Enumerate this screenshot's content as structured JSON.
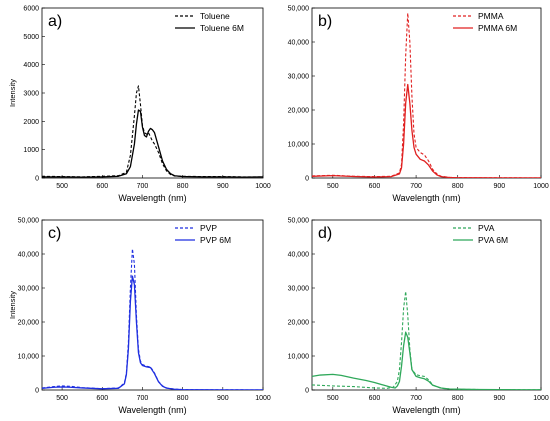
{
  "chart_data": [
    {
      "type": "line",
      "panel_label": "a)",
      "xlabel": "Wavelength (nm)",
      "ylabel": "Intensity",
      "xlim": [
        450,
        1000
      ],
      "ylim": [
        0,
        6000
      ],
      "xticks": [
        500,
        600,
        700,
        800,
        900,
        1000
      ],
      "yticks": [
        0,
        1000,
        2000,
        3000,
        4000,
        5000,
        6000
      ],
      "ytick_labels": [
        "0",
        "1000",
        "2000",
        "3000",
        "4000",
        "5000",
        "6000"
      ],
      "legend_position": "top-right",
      "color": "#000000",
      "series": [
        {
          "name": "Toluene",
          "style": "dashed",
          "x": [
            450,
            500,
            550,
            600,
            640,
            660,
            670,
            680,
            685,
            690,
            695,
            700,
            705,
            710,
            715,
            720,
            725,
            730,
            740,
            750,
            760,
            770,
            780,
            800,
            850,
            900,
            950,
            1000
          ],
          "y": [
            60,
            50,
            40,
            60,
            80,
            200,
            800,
            2200,
            3000,
            3250,
            2600,
            1850,
            1600,
            1550,
            1600,
            1450,
            1300,
            1200,
            900,
            500,
            250,
            120,
            70,
            60,
            50,
            50,
            40,
            40
          ]
        },
        {
          "name": "Toluene 6M",
          "style": "solid",
          "x": [
            450,
            500,
            550,
            600,
            640,
            660,
            670,
            680,
            685,
            690,
            695,
            700,
            705,
            710,
            715,
            720,
            725,
            730,
            740,
            750,
            760,
            770,
            780,
            800,
            850,
            900,
            950,
            1000
          ],
          "y": [
            40,
            40,
            30,
            40,
            60,
            150,
            400,
            1200,
            1900,
            2400,
            2350,
            1800,
            1500,
            1450,
            1650,
            1750,
            1700,
            1600,
            1100,
            600,
            300,
            150,
            80,
            50,
            40,
            40,
            30,
            40
          ]
        }
      ]
    },
    {
      "type": "line",
      "panel_label": "b)",
      "xlabel": "Wavelength (nm)",
      "ylabel": "",
      "xlim": [
        450,
        1000
      ],
      "ylim": [
        0,
        50000
      ],
      "xticks": [
        500,
        600,
        700,
        800,
        900,
        1000
      ],
      "yticks": [
        0,
        10000,
        20000,
        30000,
        40000,
        50000
      ],
      "ytick_labels": [
        "0",
        "10,000",
        "20,000",
        "30,000",
        "40,000",
        "50,000"
      ],
      "legend_position": "top-right",
      "color": "#e02020",
      "series": [
        {
          "name": "PMMA",
          "style": "dashed",
          "x": [
            450,
            500,
            550,
            600,
            640,
            660,
            665,
            670,
            675,
            680,
            685,
            690,
            695,
            700,
            710,
            720,
            730,
            740,
            750,
            760,
            780,
            800,
            850,
            900,
            950,
            1000
          ],
          "y": [
            600,
            800,
            500,
            400,
            500,
            1500,
            4000,
            16000,
            36000,
            48500,
            40000,
            24000,
            13000,
            9000,
            7500,
            6800,
            5000,
            2500,
            1200,
            500,
            200,
            100,
            50,
            50,
            40,
            30
          ]
        },
        {
          "name": "PMMA 6M",
          "style": "solid",
          "x": [
            450,
            500,
            550,
            600,
            640,
            660,
            665,
            670,
            675,
            680,
            685,
            690,
            695,
            700,
            710,
            720,
            730,
            740,
            750,
            760,
            780,
            800,
            850,
            900,
            950,
            1000
          ],
          "y": [
            500,
            700,
            450,
            300,
            400,
            1200,
            3000,
            10000,
            22000,
            27500,
            22000,
            14000,
            9000,
            7000,
            5500,
            5000,
            3800,
            2000,
            900,
            400,
            150,
            80,
            50,
            40,
            30,
            30
          ]
        }
      ]
    },
    {
      "type": "line",
      "panel_label": "c)",
      "xlabel": "Wavelength (nm)",
      "ylabel": "Intensity",
      "xlim": [
        450,
        1000
      ],
      "ylim": [
        0,
        50000
      ],
      "xticks": [
        500,
        600,
        700,
        800,
        900,
        1000
      ],
      "yticks": [
        0,
        10000,
        20000,
        30000,
        40000,
        50000
      ],
      "ytick_labels": [
        "0",
        "10,000",
        "20,000",
        "30,000",
        "40,000",
        "50,000"
      ],
      "legend_position": "top-right",
      "color": "#1f2fe0",
      "series": [
        {
          "name": "PVP",
          "style": "dashed",
          "x": [
            450,
            480,
            500,
            520,
            550,
            600,
            640,
            655,
            660,
            665,
            670,
            675,
            680,
            685,
            690,
            695,
            700,
            710,
            720,
            730,
            740,
            750,
            760,
            780,
            800,
            850,
            900,
            950,
            1000
          ],
          "y": [
            600,
            1000,
            1200,
            1100,
            700,
            400,
            600,
            2000,
            5000,
            14000,
            30000,
            41500,
            37000,
            22000,
            12000,
            8500,
            7500,
            7000,
            6800,
            5000,
            2500,
            1200,
            600,
            250,
            120,
            60,
            50,
            40,
            30
          ]
        },
        {
          "name": "PVP 6M",
          "style": "solid",
          "x": [
            450,
            480,
            500,
            520,
            550,
            600,
            640,
            655,
            660,
            665,
            670,
            675,
            680,
            685,
            690,
            695,
            700,
            710,
            720,
            730,
            740,
            750,
            760,
            780,
            800,
            850,
            900,
            950,
            1000
          ],
          "y": [
            500,
            800,
            900,
            800,
            600,
            350,
            500,
            1800,
            4500,
            12000,
            26000,
            33500,
            31000,
            20000,
            11000,
            8000,
            7200,
            6800,
            6600,
            4800,
            2400,
            1100,
            550,
            220,
            110,
            50,
            40,
            30,
            30
          ]
        }
      ]
    },
    {
      "type": "line",
      "panel_label": "d)",
      "xlabel": "Wavelength (nm)",
      "ylabel": "",
      "xlim": [
        450,
        1000
      ],
      "ylim": [
        0,
        50000
      ],
      "xticks": [
        500,
        600,
        700,
        800,
        900,
        1000
      ],
      "yticks": [
        0,
        10000,
        20000,
        30000,
        40000,
        50000
      ],
      "ytick_labels": [
        "0",
        "10,000",
        "20,000",
        "30,000",
        "40,000",
        "50,000"
      ],
      "legend_position": "top-right",
      "color": "#2fa85a",
      "series": [
        {
          "name": "PVA",
          "style": "dashed",
          "x": [
            450,
            500,
            550,
            600,
            630,
            645,
            655,
            660,
            665,
            670,
            675,
            680,
            685,
            690,
            700,
            710,
            720,
            730,
            740,
            760,
            780,
            800,
            850,
            900,
            950,
            1000
          ],
          "y": [
            1500,
            1200,
            1000,
            600,
            500,
            800,
            2500,
            6000,
            14000,
            24000,
            29000,
            22000,
            12000,
            6000,
            4500,
            4200,
            4000,
            3000,
            1500,
            500,
            300,
            200,
            150,
            100,
            80,
            60
          ]
        },
        {
          "name": "PVA 6M",
          "style": "solid",
          "x": [
            450,
            470,
            500,
            520,
            550,
            580,
            600,
            620,
            640,
            650,
            655,
            660,
            665,
            670,
            675,
            680,
            685,
            690,
            700,
            710,
            720,
            730,
            740,
            760,
            780,
            800,
            850,
            900,
            950,
            1000
          ],
          "y": [
            4000,
            4400,
            4600,
            4300,
            3500,
            2800,
            2200,
            1500,
            800,
            600,
            1200,
            2500,
            7000,
            13000,
            17000,
            15500,
            11000,
            6000,
            4000,
            3600,
            3300,
            2600,
            1400,
            600,
            300,
            250,
            150,
            100,
            80,
            60
          ]
        }
      ]
    }
  ]
}
